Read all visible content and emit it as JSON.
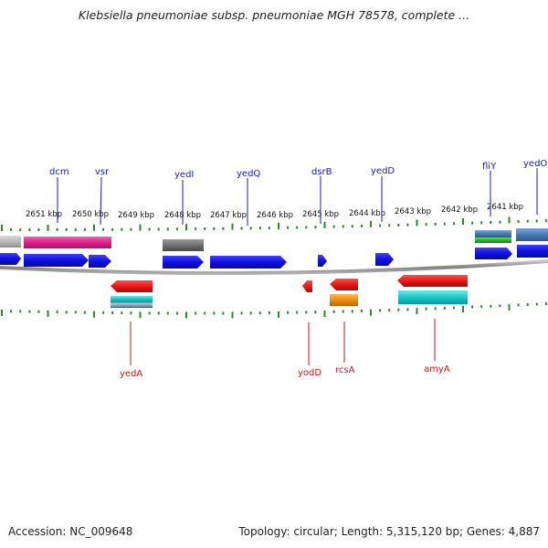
{
  "title": "Klebsiella pneumoniae subsp. pneumoniae MGH 78578, complete ...",
  "footer": {
    "accession": "Accession: NC_009648",
    "stats": "Topology: circular; Length: 5,315,120 bp; Genes: 4,887"
  },
  "scale_labels": [
    "2651 kbp",
    "2650 kbp",
    "2649 kbp",
    "2648 kbp",
    "2647 kbp",
    "2646 kbp",
    "2645 kbp",
    "2644 kbp",
    "2643 kbp",
    "2642 kbp",
    "2641 kbp"
  ],
  "top_gene_labels": [
    "dcm",
    "vsr",
    "yedI",
    "yedQ",
    "dsrB",
    "yedD",
    "fliY",
    "yedO"
  ],
  "bottom_gene_labels": [
    "yedA",
    "yodD",
    "rcsA",
    "amyA"
  ],
  "colors": {
    "tick_green": "#2a8a2a",
    "backbone": "#888888",
    "gene_label_top": "#1a1ab0",
    "gene_label_bottom": "#c01818",
    "cds_blue": "#1010e0",
    "cds_red": "#e81818",
    "magenta": "#e0208c",
    "cyan": "#18c8c8",
    "orange": "#f08c10",
    "gray": "#707070",
    "light_gray": "#b8b8b8",
    "steel_blue": "#4a7ab8",
    "green": "#28b428"
  }
}
